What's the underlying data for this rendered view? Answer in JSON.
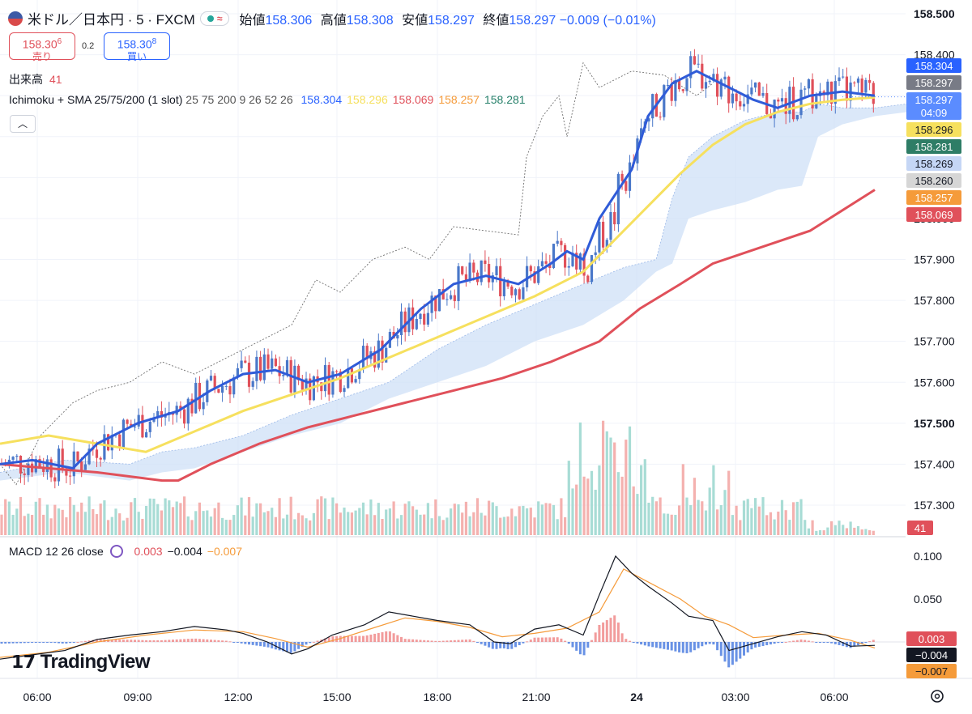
{
  "header": {
    "symbol": "米ドル／日本円 · 5 · FXCM",
    "pill_icon": "≈",
    "ohlc": [
      {
        "k": "始値",
        "v": "158.306"
      },
      {
        "k": "高値",
        "v": "158.308"
      },
      {
        "k": "安値",
        "v": "158.297"
      },
      {
        "k": "終値",
        "v": "158.297"
      }
    ],
    "change": "−0.009 (−0.01%)"
  },
  "trade": {
    "sell_price": "158.30",
    "sell_sup": "6",
    "sell_label": "売り",
    "buy_price": "158.30",
    "buy_sup": "8",
    "buy_label": "買い",
    "spread": "0.2"
  },
  "volume_legend": {
    "label": "出来高",
    "value": "41"
  },
  "ichimoku_legend": {
    "name": "Ichimoku + SMA 25/75/200 (1 slot)",
    "params": "25 75 200 9 26 52 26",
    "values": [
      {
        "v": "158.304",
        "color": "#2962ff"
      },
      {
        "v": "158.296",
        "color": "#f6e05e"
      },
      {
        "v": "158.069",
        "color": "#e0505a"
      },
      {
        "v": "158.257",
        "color": "#f59b3a"
      },
      {
        "v": "158.281",
        "color": "#26806a"
      }
    ]
  },
  "macd_legend": {
    "name": "MACD",
    "params": "12 26 close",
    "values": [
      {
        "v": "0.003",
        "color": "#e0505a"
      },
      {
        "v": "−0.004",
        "color": "#131722"
      },
      {
        "v": "−0.007",
        "color": "#f59b3a"
      }
    ]
  },
  "price_axis": {
    "ticks": [
      "158.500",
      "158.400",
      "158.000",
      "157.900",
      "157.800",
      "157.700",
      "157.600",
      "157.500",
      "157.400",
      "157.300"
    ],
    "badges": [
      {
        "label": "158.304",
        "bg": "#2962ff",
        "fg": "#ffffff",
        "value": 158.304
      },
      {
        "label": "158.297",
        "bg": "#787b86",
        "fg": "#ffffff",
        "value": 158.297
      },
      {
        "label": "158.297",
        "bg": "#5b8cff",
        "fg": "#ffffff",
        "value": 158.297
      },
      {
        "label": "04:09",
        "bg": "#5b8cff",
        "fg": "#ffffff",
        "value": 158.297
      },
      {
        "label": "158.296",
        "bg": "#f6e05e",
        "fg": "#131722",
        "value": 158.296
      },
      {
        "label": "158.281",
        "bg": "#2e7d66",
        "fg": "#ffffff",
        "value": 158.281
      },
      {
        "label": "158.269",
        "bg": "#c5d6f5",
        "fg": "#131722",
        "value": 158.269
      },
      {
        "label": "158.260",
        "bg": "#d6d6d6",
        "fg": "#131722",
        "value": 158.26
      },
      {
        "label": "158.257",
        "bg": "#f59b3a",
        "fg": "#ffffff",
        "value": 158.257
      },
      {
        "label": "158.069",
        "bg": "#e0505a",
        "fg": "#ffffff",
        "value": 158.069
      }
    ],
    "volume_badge": {
      "label": "41",
      "bg": "#e0505a",
      "fg": "#ffffff"
    }
  },
  "macd_axis": {
    "ticks": [
      "0.100",
      "0.050"
    ],
    "badges": [
      {
        "label": "0.003",
        "bg": "#e0505a",
        "fg": "#ffffff",
        "value": 0.003
      },
      {
        "label": "−0.004",
        "bg": "#131722",
        "fg": "#ffffff",
        "value": -0.004
      },
      {
        "label": "−0.007",
        "bg": "#f59b3a",
        "fg": "#131722",
        "value": -0.007
      }
    ]
  },
  "time_axis": [
    "06:00",
    "09:00",
    "12:00",
    "15:00",
    "18:00",
    "21:00",
    "24",
    "03:00",
    "06:00"
  ],
  "watermark": "TradingView",
  "chart_data": {
    "type": "candlestick",
    "interval": "5m",
    "ylim": [
      157.22,
      158.52
    ],
    "macd_ylim": [
      -0.045,
      0.115
    ],
    "sma25": [
      [
        0,
        157.4
      ],
      [
        40,
        157.41
      ],
      [
        90,
        157.39
      ],
      [
        120,
        157.45
      ],
      [
        170,
        157.5
      ],
      [
        220,
        157.53
      ],
      [
        260,
        157.58
      ],
      [
        300,
        157.62
      ],
      [
        340,
        157.63
      ],
      [
        380,
        157.6
      ],
      [
        420,
        157.62
      ],
      [
        470,
        157.68
      ],
      [
        520,
        157.78
      ],
      [
        560,
        157.84
      ],
      [
        600,
        157.86
      ],
      [
        640,
        157.84
      ],
      [
        680,
        157.89
      ],
      [
        700,
        157.92
      ],
      [
        720,
        157.9
      ],
      [
        740,
        158.0
      ],
      [
        780,
        158.12
      ],
      [
        800,
        158.25
      ],
      [
        830,
        158.33
      ],
      [
        860,
        158.36
      ],
      [
        890,
        158.33
      ],
      [
        930,
        158.29
      ],
      [
        960,
        158.27
      ],
      [
        1000,
        158.3
      ],
      [
        1040,
        158.31
      ],
      [
        1080,
        158.3
      ]
    ],
    "sma75": [
      [
        0,
        157.45
      ],
      [
        60,
        157.47
      ],
      [
        120,
        157.45
      ],
      [
        180,
        157.43
      ],
      [
        240,
        157.48
      ],
      [
        300,
        157.53
      ],
      [
        360,
        157.57
      ],
      [
        420,
        157.61
      ],
      [
        480,
        157.66
      ],
      [
        540,
        157.71
      ],
      [
        600,
        157.76
      ],
      [
        660,
        157.81
      ],
      [
        720,
        157.87
      ],
      [
        760,
        157.95
      ],
      [
        800,
        158.03
      ],
      [
        840,
        158.11
      ],
      [
        880,
        158.18
      ],
      [
        920,
        158.23
      ],
      [
        960,
        158.26
      ],
      [
        1000,
        158.28
      ],
      [
        1040,
        158.29
      ],
      [
        1080,
        158.296
      ]
    ],
    "sma200": [
      [
        0,
        157.4
      ],
      [
        60,
        157.39
      ],
      [
        120,
        157.38
      ],
      [
        200,
        157.36
      ],
      [
        220,
        157.36
      ],
      [
        260,
        157.4
      ],
      [
        320,
        157.45
      ],
      [
        380,
        157.49
      ],
      [
        440,
        157.52
      ],
      [
        500,
        157.55
      ],
      [
        560,
        157.58
      ],
      [
        620,
        157.61
      ],
      [
        680,
        157.65
      ],
      [
        740,
        157.7
      ],
      [
        790,
        157.78
      ],
      [
        840,
        157.84
      ],
      [
        880,
        157.89
      ],
      [
        940,
        157.93
      ],
      [
        1000,
        157.97
      ],
      [
        1040,
        158.02
      ],
      [
        1080,
        158.07
      ]
    ],
    "chikou": [
      [
        0,
        157.4
      ],
      [
        20,
        157.35
      ],
      [
        50,
        157.47
      ],
      [
        90,
        157.55
      ],
      [
        120,
        157.58
      ],
      [
        160,
        157.6
      ],
      [
        200,
        157.65
      ],
      [
        240,
        157.62
      ],
      [
        280,
        157.66
      ],
      [
        320,
        157.7
      ],
      [
        360,
        157.74
      ],
      [
        390,
        157.85
      ],
      [
        420,
        157.82
      ],
      [
        460,
        157.9
      ],
      [
        500,
        157.93
      ],
      [
        530,
        157.9
      ],
      [
        560,
        157.98
      ],
      [
        600,
        157.97
      ],
      [
        640,
        157.96
      ],
      [
        650,
        158.15
      ],
      [
        670,
        158.25
      ],
      [
        690,
        158.3
      ],
      [
        700,
        158.2
      ],
      [
        720,
        158.38
      ],
      [
        740,
        158.32
      ],
      [
        780,
        158.36
      ],
      [
        820,
        158.35
      ],
      [
        860,
        158.3
      ],
      [
        880,
        158.33
      ]
    ],
    "cloud_top": [
      [
        0,
        157.38
      ],
      [
        80,
        157.41
      ],
      [
        160,
        157.4
      ],
      [
        200,
        157.43
      ],
      [
        240,
        157.44
      ],
      [
        300,
        157.47
      ],
      [
        360,
        157.52
      ],
      [
        420,
        157.56
      ],
      [
        480,
        157.6
      ],
      [
        540,
        157.68
      ],
      [
        600,
        157.74
      ],
      [
        660,
        157.79
      ],
      [
        720,
        157.84
      ],
      [
        770,
        157.88
      ],
      [
        810,
        157.9
      ],
      [
        830,
        158.05
      ],
      [
        850,
        158.15
      ],
      [
        880,
        158.2
      ],
      [
        920,
        158.24
      ],
      [
        960,
        158.26
      ],
      [
        990,
        158.26
      ],
      [
        1010,
        158.28
      ],
      [
        1040,
        158.27
      ],
      [
        1080,
        158.27
      ],
      [
        1120,
        158.28
      ]
    ],
    "cloud_bottom": [
      [
        0,
        157.36
      ],
      [
        80,
        157.38
      ],
      [
        160,
        157.36
      ],
      [
        200,
        157.38
      ],
      [
        240,
        157.39
      ],
      [
        300,
        157.43
      ],
      [
        360,
        157.47
      ],
      [
        420,
        157.5
      ],
      [
        480,
        157.56
      ],
      [
        540,
        157.6
      ],
      [
        600,
        157.64
      ],
      [
        660,
        157.7
      ],
      [
        720,
        157.74
      ],
      [
        770,
        157.8
      ],
      [
        810,
        157.87
      ],
      [
        830,
        157.89
      ],
      [
        850,
        158.0
      ],
      [
        880,
        158.02
      ],
      [
        920,
        158.04
      ],
      [
        960,
        158.07
      ],
      [
        990,
        158.08
      ],
      [
        1010,
        158.2
      ],
      [
        1040,
        158.23
      ],
      [
        1080,
        158.25
      ],
      [
        1120,
        158.26
      ]
    ],
    "macd_line": [
      [
        0,
        -0.02
      ],
      [
        40,
        -0.015
      ],
      [
        80,
        -0.01
      ],
      [
        120,
        0.003
      ],
      [
        160,
        0.008
      ],
      [
        200,
        0.012
      ],
      [
        240,
        0.018
      ],
      [
        280,
        0.014
      ],
      [
        300,
        0.01
      ],
      [
        330,
        0.0
      ],
      [
        360,
        -0.014
      ],
      [
        380,
        -0.008
      ],
      [
        410,
        0.008
      ],
      [
        450,
        0.02
      ],
      [
        480,
        0.035
      ],
      [
        510,
        0.03
      ],
      [
        540,
        0.025
      ],
      [
        580,
        0.02
      ],
      [
        610,
        0.0
      ],
      [
        630,
        -0.002
      ],
      [
        660,
        0.015
      ],
      [
        690,
        0.02
      ],
      [
        720,
        0.008
      ],
      [
        740,
        0.055
      ],
      [
        760,
        0.1
      ],
      [
        780,
        0.08
      ],
      [
        800,
        0.065
      ],
      [
        830,
        0.045
      ],
      [
        850,
        0.03
      ],
      [
        880,
        0.025
      ],
      [
        900,
        -0.01
      ],
      [
        930,
        -0.002
      ],
      [
        960,
        0.006
      ],
      [
        990,
        0.012
      ],
      [
        1020,
        0.008
      ],
      [
        1050,
        -0.005
      ],
      [
        1080,
        -0.004
      ]
    ],
    "macd_signal": [
      [
        0,
        -0.018
      ],
      [
        60,
        -0.012
      ],
      [
        120,
        0.0
      ],
      [
        180,
        0.008
      ],
      [
        240,
        0.014
      ],
      [
        300,
        0.012
      ],
      [
        340,
        0.004
      ],
      [
        380,
        -0.006
      ],
      [
        420,
        0.004
      ],
      [
        460,
        0.016
      ],
      [
        500,
        0.028
      ],
      [
        540,
        0.024
      ],
      [
        580,
        0.017
      ],
      [
        620,
        0.006
      ],
      [
        660,
        0.01
      ],
      [
        700,
        0.016
      ],
      [
        740,
        0.035
      ],
      [
        770,
        0.085
      ],
      [
        800,
        0.07
      ],
      [
        840,
        0.05
      ],
      [
        870,
        0.03
      ],
      [
        900,
        0.02
      ],
      [
        930,
        0.005
      ],
      [
        970,
        0.008
      ],
      [
        1010,
        0.01
      ],
      [
        1050,
        0.002
      ],
      [
        1080,
        -0.007
      ]
    ],
    "candle_seed": 7
  }
}
